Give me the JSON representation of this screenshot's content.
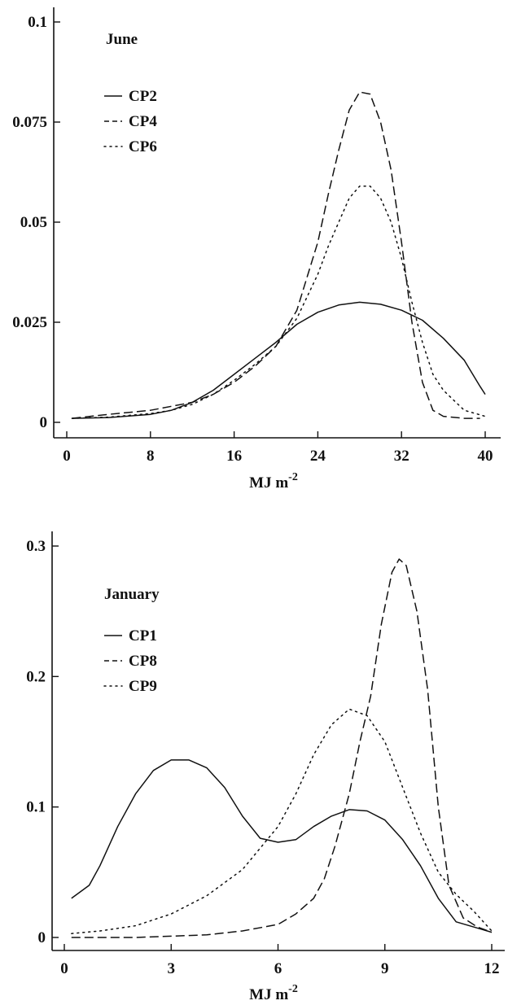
{
  "chart_data": [
    {
      "type": "line",
      "title": "June",
      "xlabel": "MJ m",
      "xlabel_sup": "-2",
      "ylabel": "",
      "xlim": [
        0,
        40
      ],
      "ylim": [
        0,
        0.1
      ],
      "xticks": [
        0,
        8,
        16,
        24,
        32,
        40
      ],
      "xtick_labels": [
        "0",
        "8",
        "16",
        "24",
        "32",
        "40"
      ],
      "yticks": [
        0,
        0.025,
        0.05,
        0.075,
        0.1
      ],
      "ytick_labels": [
        "0",
        "0.025",
        "0.05",
        "0.075",
        "0.1"
      ],
      "legend": "top-left",
      "grid": false,
      "series": [
        {
          "name": "CP2",
          "style": "solid",
          "x": [
            0.5,
            4,
            8,
            10,
            12,
            14,
            16,
            18,
            20,
            22,
            24,
            26,
            28,
            30,
            32,
            34,
            36,
            38,
            39.5,
            40
          ],
          "y": [
            0.001,
            0.0012,
            0.002,
            0.003,
            0.005,
            0.008,
            0.012,
            0.016,
            0.02,
            0.0245,
            0.0275,
            0.0293,
            0.03,
            0.0295,
            0.028,
            0.0255,
            0.021,
            0.0155,
            0.009,
            0.007
          ]
        },
        {
          "name": "CP4",
          "style": "dashed",
          "x": [
            0.5,
            4,
            8,
            10,
            12,
            14,
            16,
            18,
            20,
            22,
            24,
            25,
            26,
            27,
            28,
            29,
            30,
            31,
            32,
            33,
            34,
            35,
            36,
            38,
            39.5
          ],
          "y": [
            0.001,
            0.002,
            0.003,
            0.004,
            0.005,
            0.007,
            0.01,
            0.014,
            0.019,
            0.028,
            0.045,
            0.057,
            0.068,
            0.078,
            0.0825,
            0.082,
            0.075,
            0.063,
            0.045,
            0.025,
            0.01,
            0.003,
            0.0015,
            0.001,
            0.001
          ]
        },
        {
          "name": "CP6",
          "style": "dotted",
          "x": [
            0.5,
            4,
            8,
            10,
            12,
            14,
            16,
            18,
            20,
            22,
            24,
            25,
            26,
            27,
            28,
            29,
            30,
            31,
            32,
            33,
            34,
            35,
            36,
            38,
            40
          ],
          "y": [
            0.001,
            0.0013,
            0.0022,
            0.003,
            0.0045,
            0.007,
            0.0105,
            0.0145,
            0.019,
            0.026,
            0.037,
            0.044,
            0.05,
            0.056,
            0.059,
            0.059,
            0.056,
            0.05,
            0.041,
            0.03,
            0.02,
            0.012,
            0.008,
            0.003,
            0.0015
          ]
        }
      ]
    },
    {
      "type": "line",
      "title": "January",
      "xlabel": "MJ m",
      "xlabel_sup": "-2",
      "ylabel": "",
      "xlim": [
        0,
        12
      ],
      "ylim": [
        0,
        0.3
      ],
      "xticks": [
        0,
        3,
        6,
        9,
        12
      ],
      "xtick_labels": [
        "0",
        "3",
        "6",
        "9",
        "12"
      ],
      "yticks": [
        0,
        0.1,
        0.2,
        0.3
      ],
      "ytick_labels": [
        "0",
        "0.1",
        "0.2",
        "0.3"
      ],
      "legend": "top-left",
      "grid": false,
      "series": [
        {
          "name": "CP1",
          "style": "solid",
          "x": [
            0.2,
            0.4,
            0.7,
            1.0,
            1.5,
            2.0,
            2.5,
            3.0,
            3.5,
            4.0,
            4.5,
            5.0,
            5.5,
            6.0,
            6.5,
            7.0,
            7.5,
            8.0,
            8.5,
            9.0,
            9.5,
            10.0,
            10.5,
            11.0,
            11.5,
            12.0
          ],
          "y": [
            0.03,
            0.034,
            0.04,
            0.055,
            0.085,
            0.11,
            0.128,
            0.136,
            0.136,
            0.13,
            0.115,
            0.093,
            0.076,
            0.073,
            0.075,
            0.085,
            0.093,
            0.098,
            0.097,
            0.09,
            0.075,
            0.055,
            0.03,
            0.012,
            0.008,
            0.004
          ]
        },
        {
          "name": "CP8",
          "style": "dashed",
          "x": [
            0.2,
            2,
            4,
            5,
            6,
            6.5,
            7,
            7.3,
            7.6,
            8.0,
            8.3,
            8.6,
            8.9,
            9.2,
            9.4,
            9.6,
            9.9,
            10.2,
            10.5,
            10.8,
            11.2,
            11.6,
            12.0
          ],
          "y": [
            0.0,
            0.0,
            0.002,
            0.005,
            0.01,
            0.018,
            0.03,
            0.045,
            0.07,
            0.11,
            0.15,
            0.185,
            0.24,
            0.28,
            0.29,
            0.285,
            0.25,
            0.19,
            0.1,
            0.04,
            0.015,
            0.008,
            0.004
          ]
        },
        {
          "name": "CP9",
          "style": "dotted",
          "x": [
            0.2,
            1,
            2,
            3,
            4,
            5,
            6,
            6.5,
            7,
            7.5,
            8.0,
            8.5,
            9.0,
            9.5,
            10.0,
            10.5,
            11.0,
            11.5,
            12.0
          ],
          "y": [
            0.003,
            0.005,
            0.009,
            0.018,
            0.032,
            0.052,
            0.085,
            0.11,
            0.14,
            0.163,
            0.175,
            0.17,
            0.15,
            0.115,
            0.08,
            0.05,
            0.033,
            0.02,
            0.005
          ]
        }
      ]
    }
  ]
}
